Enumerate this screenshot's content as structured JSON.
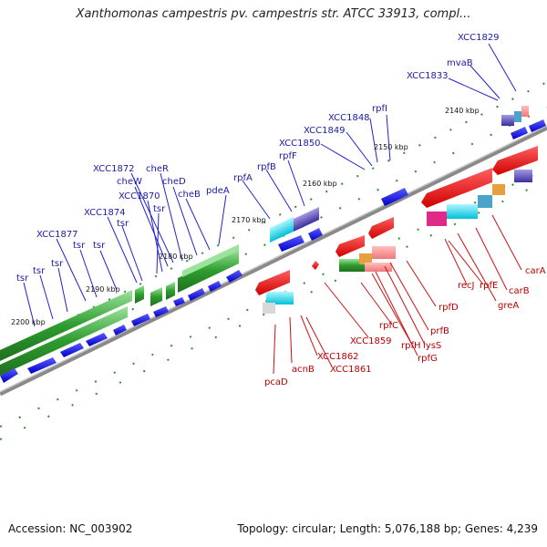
{
  "title": "Xanthomonas campestris pv. campestris str. ATCC 33913, compl...",
  "accession": "Accession: NC_003902",
  "summary": "Topology: circular; Length: 5,076,188 bp; Genes: 4,239",
  "ticks": [
    "2140 kbp",
    "2150 kbp",
    "2160 kbp",
    "2170 kbp",
    "2180 kbp",
    "2190 kbp",
    "2200 kbp"
  ],
  "upper_genes": [
    "XCC1829",
    "mvaB",
    "XCC1833",
    "rpfI",
    "XCC1848",
    "XCC1849",
    "XCC1850",
    "rpfF",
    "rpfB",
    "rpfA",
    "pdeA",
    "cheB",
    "cheD",
    "cheR",
    "XCC1872",
    "cheW",
    "XCC1870",
    "tsr",
    "XCC1874",
    "tsr",
    "XCC1877",
    "tsr",
    "tsr",
    "tsr",
    "tsr",
    "tsr"
  ],
  "lower_genes": [
    "carA",
    "carB",
    "greA",
    "rpfE",
    "recJ",
    "rpfD",
    "prfB",
    "lysS",
    "rpfG",
    "rpfH",
    "rpfC",
    "XCC1859",
    "XCC1861",
    "XCC1862",
    "acnB",
    "pcaD"
  ],
  "colors": {
    "forward_strand": "#1010e0",
    "reverse_strand": "#e01010",
    "cds_green": "#2e9c2e",
    "axis": "#808080",
    "label_blue": "#1a1aa6",
    "label_red": "#b80000"
  }
}
